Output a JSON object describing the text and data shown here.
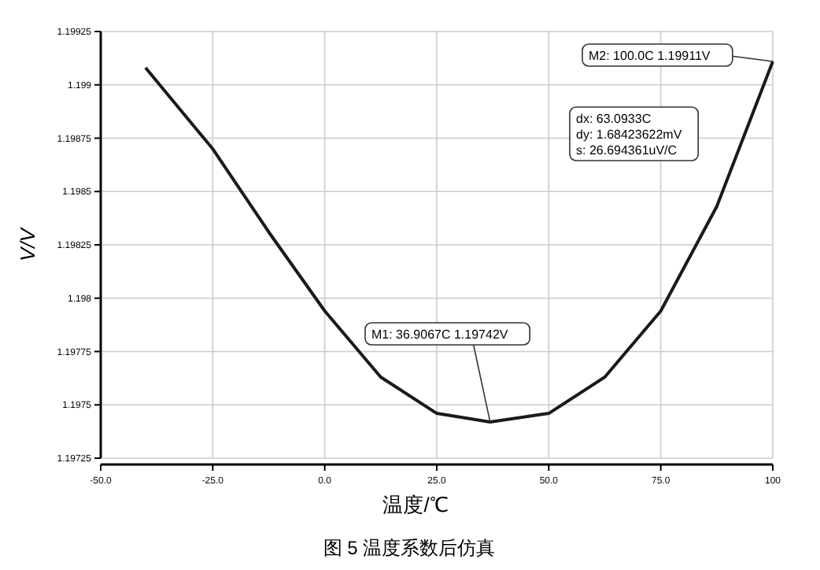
{
  "chart_data": {
    "type": "line",
    "xlabel": "温度/℃",
    "ylabel": "V/V",
    "x": [
      -40,
      -25,
      -12.5,
      0,
      12.5,
      25,
      36.9067,
      50,
      62.5,
      75,
      87.5,
      100
    ],
    "series": [
      {
        "color": "#1a1a1a",
        "values": [
          1.19908,
          1.1987,
          1.19831,
          1.19794,
          1.19763,
          1.19746,
          1.19742,
          1.19746,
          1.19763,
          1.19794,
          1.19843,
          1.19911
        ]
      }
    ],
    "xlim": [
      -50,
      100
    ],
    "xticks": [
      {
        "value": -50,
        "label": "-50.0"
      },
      {
        "value": -25,
        "label": "-25.0"
      },
      {
        "value": 0,
        "label": "0.0"
      },
      {
        "value": 25,
        "label": "25.0"
      },
      {
        "value": 50,
        "label": "50.0"
      },
      {
        "value": 75,
        "label": "75.0"
      },
      {
        "value": 100,
        "label": "100"
      }
    ],
    "ylim": [
      1.19725,
      1.19925
    ],
    "yticks": [
      1.19725,
      1.1975,
      1.19775,
      1.198,
      1.19825,
      1.1985,
      1.19875,
      1.199,
      1.19925
    ],
    "grid": true,
    "line_style": "solid",
    "annotations": [
      {
        "text": "M1: 36.9067C 1.19742V",
        "x": 36.9067,
        "y": 1.19742
      },
      {
        "text": "M2: 100.0C 1.19911V",
        "x": 100,
        "y": 1.19911
      },
      "dx: 63.0933C\ndy: 1.68423622mV\ns: 26.694361uV/C",
      "图 5   温度系数后仿真"
    ]
  }
}
